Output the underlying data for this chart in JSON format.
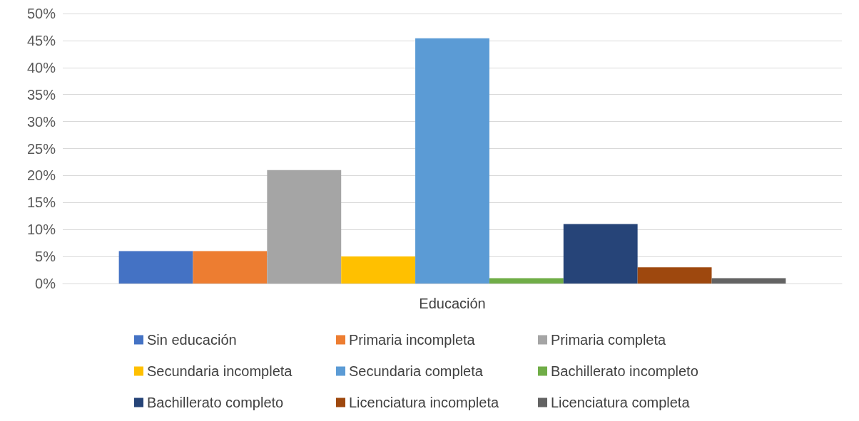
{
  "chart_data": {
    "type": "bar",
    "categories": [
      "Educación"
    ],
    "series": [
      {
        "name": "Sin educación",
        "color": "#4472c4",
        "values": [
          6
        ]
      },
      {
        "name": "Primaria incompleta",
        "color": "#ed7d31",
        "values": [
          6
        ]
      },
      {
        "name": "Primaria completa",
        "color": "#a5a5a5",
        "values": [
          21
        ]
      },
      {
        "name": "Secundaria incompleta",
        "color": "#ffc000",
        "values": [
          5
        ]
      },
      {
        "name": "Secundaria completa",
        "color": "#5b9bd5",
        "values": [
          45.4
        ]
      },
      {
        "name": "Bachillerato incompleto",
        "color": "#70ad47",
        "values": [
          1
        ]
      },
      {
        "name": "Bachillerato completo",
        "color": "#264478",
        "values": [
          11
        ]
      },
      {
        "name": "Licenciatura incompleta",
        "color": "#9e480e",
        "values": [
          3
        ]
      },
      {
        "name": "Licenciatura completa",
        "color": "#636363",
        "values": [
          1
        ]
      }
    ],
    "ylim": [
      0,
      50
    ],
    "yticks": [
      {
        "value": 0,
        "label": "0%"
      },
      {
        "value": 5,
        "label": "5%"
      },
      {
        "value": 10,
        "label": "10%"
      },
      {
        "value": 15,
        "label": "15%"
      },
      {
        "value": 20,
        "label": "20%"
      },
      {
        "value": 25,
        "label": "25%"
      },
      {
        "value": 30,
        "label": "30%"
      },
      {
        "value": 35,
        "label": "35%"
      },
      {
        "value": 40,
        "label": "40%"
      },
      {
        "value": 45,
        "label": "45%"
      },
      {
        "value": 50,
        "label": "50%"
      }
    ],
    "grid": "y",
    "legend": "bottom"
  }
}
